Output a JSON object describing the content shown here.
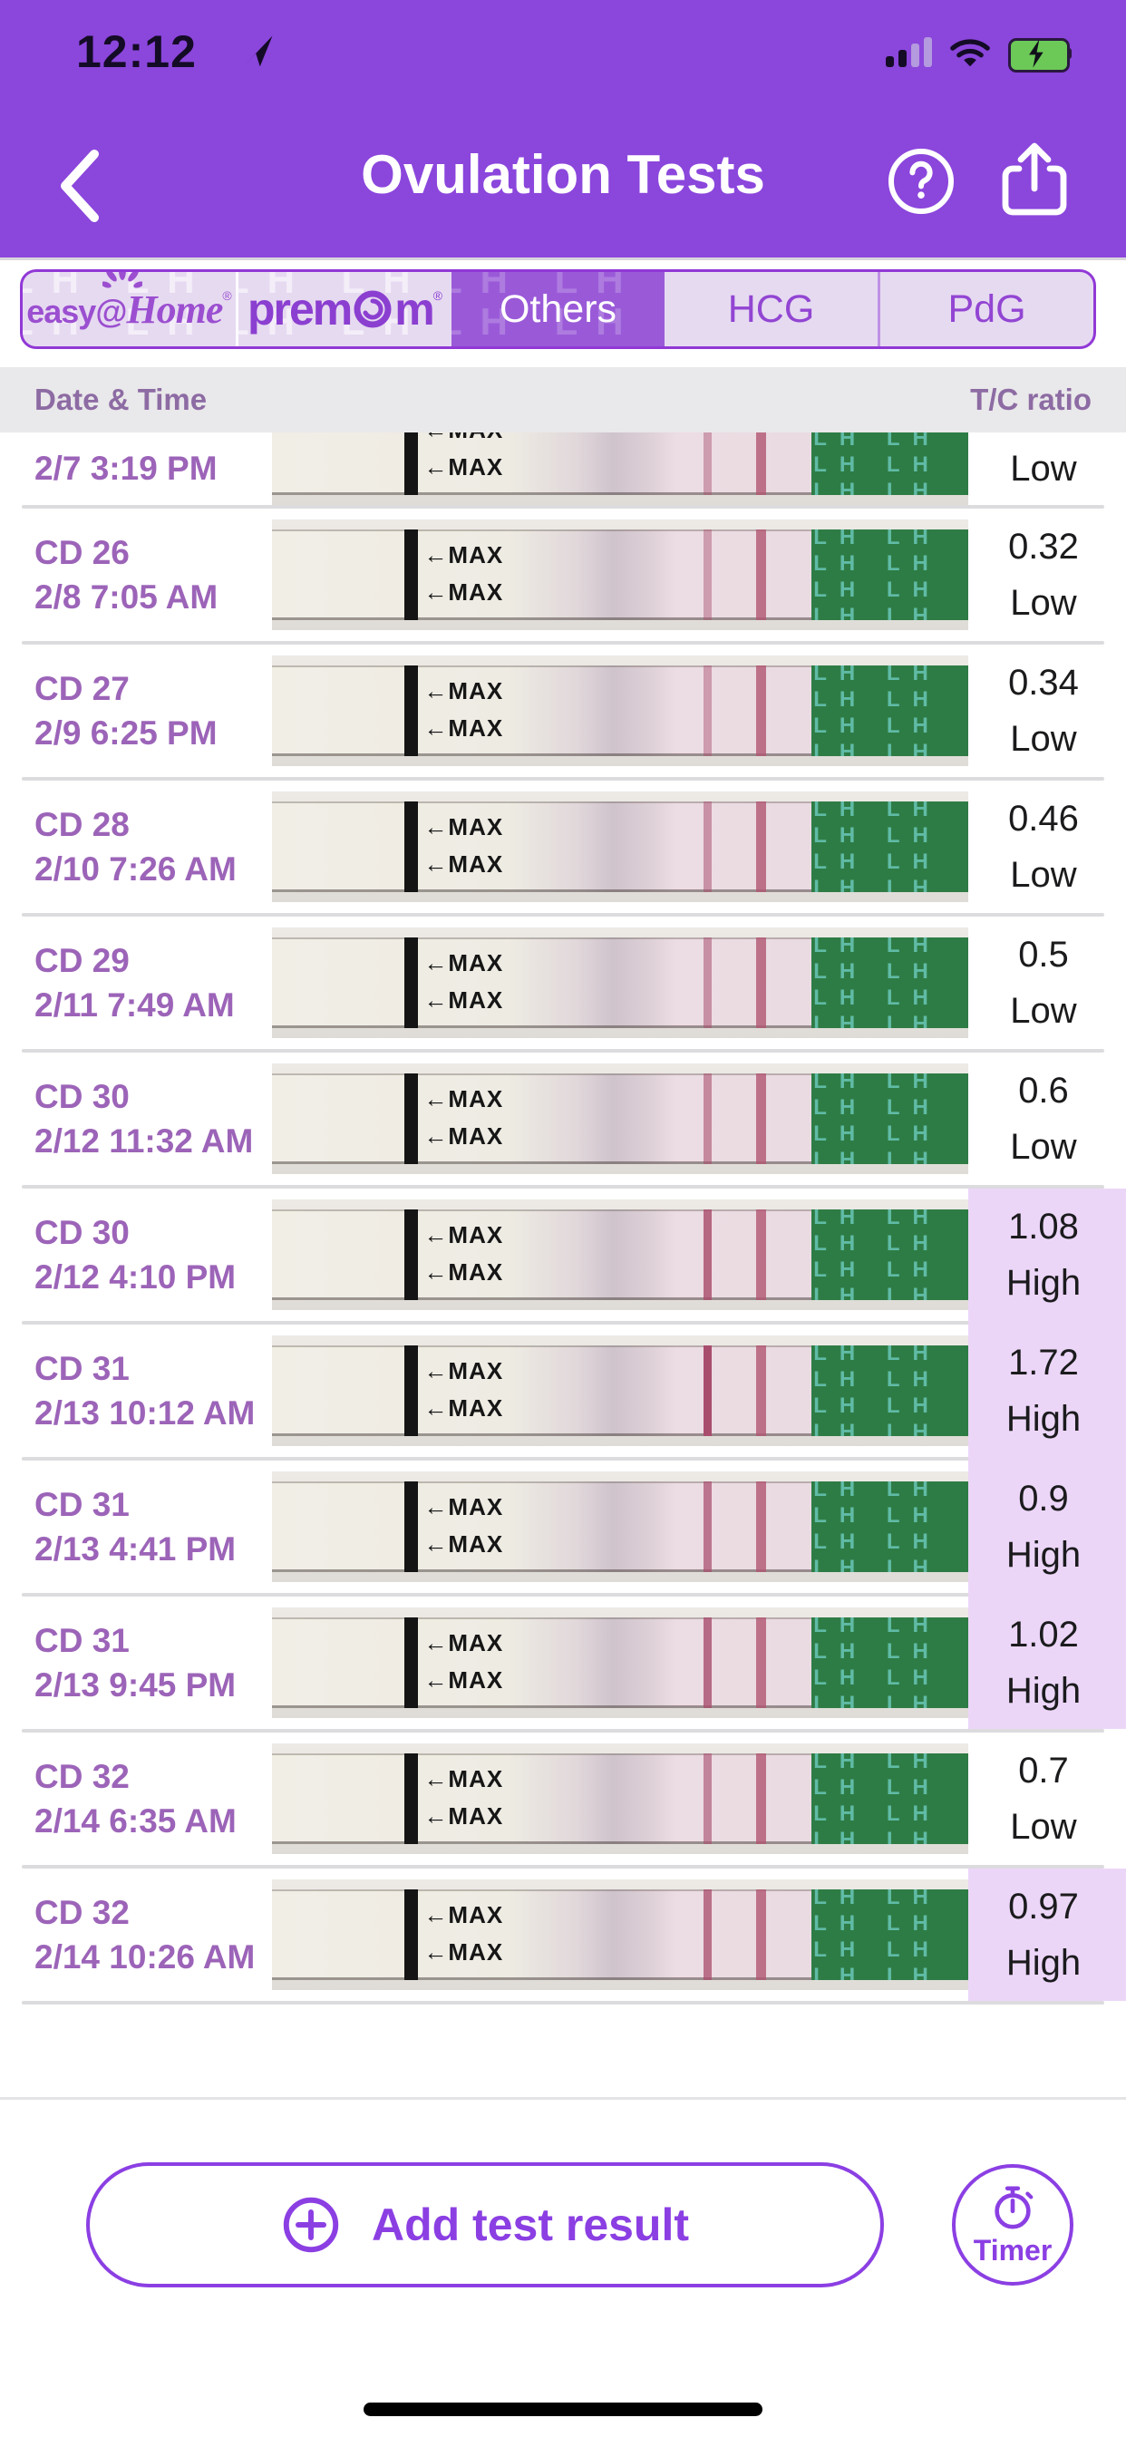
{
  "status_bar": {
    "time": "12:12"
  },
  "header": {
    "title": "Ovulation Tests"
  },
  "tabs_watermark": "LH",
  "tabs": [
    {
      "label": "easy@Home",
      "parts": {
        "easy_at": "easy@",
        "home": "Home",
        "reg": "®"
      },
      "selected": false
    },
    {
      "label": "premom",
      "parts": {
        "prem": "prem",
        "m": "m",
        "reg": "®"
      },
      "selected": false
    },
    {
      "label": "Others",
      "selected": true
    },
    {
      "label": "HCG",
      "selected": false
    },
    {
      "label": "PdG",
      "selected": false
    }
  ],
  "table": {
    "columns": {
      "left": "Date & Time",
      "right": "T/C ratio"
    },
    "rows": [
      {
        "cd": "",
        "datetime": "2/7 3:19 PM",
        "ratio": "",
        "level": "Low",
        "clipped": true,
        "t_line": 0.45
      },
      {
        "cd": "CD 26",
        "datetime": "2/8 7:05 AM",
        "ratio": "0.32",
        "level": "Low",
        "t_line": 0.45
      },
      {
        "cd": "CD 27",
        "datetime": "2/9 6:25 PM",
        "ratio": "0.34",
        "level": "Low",
        "t_line": 0.46
      },
      {
        "cd": "CD 28",
        "datetime": "2/10 7:26 AM",
        "ratio": "0.46",
        "level": "Low",
        "t_line": 0.52
      },
      {
        "cd": "CD 29",
        "datetime": "2/11 7:49 AM",
        "ratio": "0.5",
        "level": "Low",
        "t_line": 0.54
      },
      {
        "cd": "CD 30",
        "datetime": "2/12 11:32 AM",
        "ratio": "0.6",
        "level": "Low",
        "t_line": 0.58
      },
      {
        "cd": "CD 30",
        "datetime": "2/12 4:10 PM",
        "ratio": "1.08",
        "level": "High",
        "t_line": 0.82
      },
      {
        "cd": "CD 31",
        "datetime": "2/13 10:12 AM",
        "ratio": "1.72",
        "level": "High",
        "t_line": 1.0
      },
      {
        "cd": "CD 31",
        "datetime": "2/13 4:41 PM",
        "ratio": "0.9",
        "level": "High",
        "t_line": 0.72
      },
      {
        "cd": "CD 31",
        "datetime": "2/13 9:45 PM",
        "ratio": "1.02",
        "level": "High",
        "t_line": 0.8
      },
      {
        "cd": "CD 32",
        "datetime": "2/14 6:35 AM",
        "ratio": "0.7",
        "level": "Low",
        "t_line": 0.62
      },
      {
        "cd": "CD 32",
        "datetime": "2/14 10:26 AM",
        "ratio": "0.97",
        "level": "High",
        "t_line": 0.76
      }
    ]
  },
  "strip": {
    "max_label": "←MAX",
    "handle_text": "LH"
  },
  "footer": {
    "add_label": "Add test result",
    "timer_label": "Timer"
  },
  "colors": {
    "header_purple": "#8b46dc",
    "tab_selected": "#9a5ad8",
    "tab_border": "#9138d6",
    "accent_purple": "#8b3fe3",
    "date_text": "#9c64b8",
    "high_highlight": "#ecd6f8",
    "strip_green": "#2e7c45"
  }
}
